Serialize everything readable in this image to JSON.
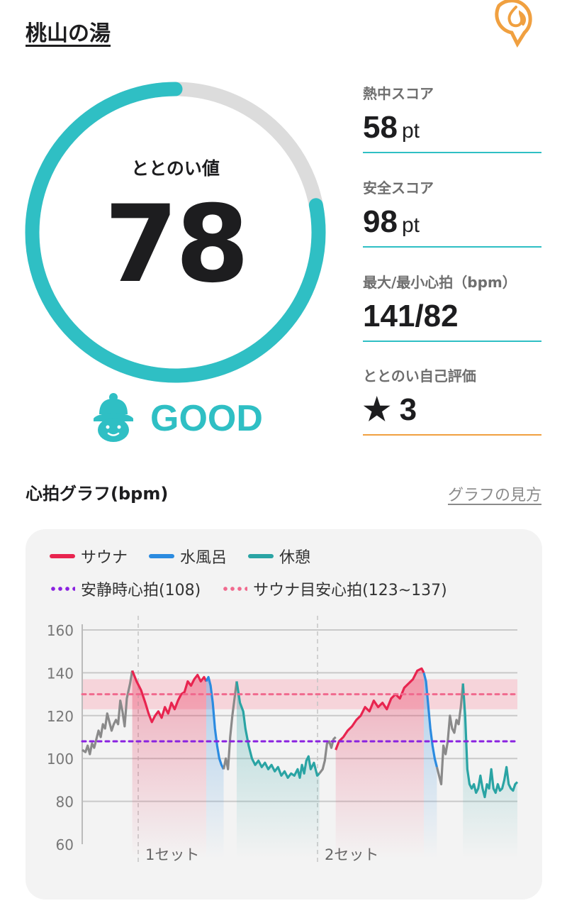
{
  "facility": {
    "name": "桃山の湯"
  },
  "icons": {
    "fire": "fire-chat-icon",
    "rating": "sauna-hat-face-icon"
  },
  "colors": {
    "accent": "#2fbfc4",
    "sauna": "#e8244f",
    "cold_bath": "#2b8be0",
    "rest": "#2aa4a4",
    "resting_hr": "#8a22e0",
    "target_hr": "#f06a8e",
    "self_rating_line": "#f0a040",
    "transition": "#8a8a8a"
  },
  "totonoi": {
    "label": "ととのい値",
    "value": "78",
    "score": 78,
    "rating": "GOOD"
  },
  "metrics": [
    {
      "label": "熱中スコア",
      "value": "58",
      "unit": "pt"
    },
    {
      "label": "安全スコア",
      "value": "98",
      "unit": "pt"
    },
    {
      "label": "最大/最小心拍（bpm）",
      "value": "141/82",
      "unit": ""
    },
    {
      "label": "ととのい自己評価",
      "value": "★ 3",
      "unit": ""
    }
  ],
  "graph": {
    "title": "心拍グラフ(bpm)",
    "guide_link": "グラフの見方"
  },
  "chart_data": {
    "type": "line",
    "legend": [
      "サウナ",
      "水風呂",
      "休憩",
      "安静時心拍(108)",
      "サウナ目安心拍(123~137)"
    ],
    "y_ticks": [
      "160",
      "140",
      "120",
      "100",
      "80",
      "60"
    ],
    "ylim": [
      60,
      160
    ],
    "x_markers": [
      "1セット",
      "2セット"
    ],
    "resting_hr": 108,
    "target_band": [
      123,
      137
    ],
    "target_line": 130,
    "series": [
      {
        "phase": "transition",
        "points": [
          [
            0,
            104
          ],
          [
            3,
            103
          ],
          [
            5,
            106
          ],
          [
            7,
            102
          ],
          [
            9,
            107
          ],
          [
            11,
            105
          ],
          [
            13,
            109
          ],
          [
            15,
            113
          ],
          [
            17,
            110
          ],
          [
            19,
            116
          ],
          [
            21,
            114
          ],
          [
            23,
            121
          ],
          [
            25,
            117
          ],
          [
            27,
            113
          ],
          [
            29,
            116
          ],
          [
            31,
            118
          ],
          [
            33,
            116
          ],
          [
            35,
            127
          ],
          [
            37,
            122
          ],
          [
            39,
            115
          ],
          [
            41,
            128
          ],
          [
            44,
            135
          ],
          [
            46,
            141
          ]
        ]
      },
      {
        "phase": "sauna",
        "points": [
          [
            46,
            141
          ],
          [
            50,
            136
          ],
          [
            54,
            132
          ],
          [
            58,
            126
          ],
          [
            61,
            121
          ],
          [
            64,
            117
          ],
          [
            67,
            120
          ],
          [
            70,
            122
          ],
          [
            73,
            119
          ],
          [
            76,
            124
          ],
          [
            79,
            121
          ],
          [
            82,
            126
          ],
          [
            85,
            123
          ],
          [
            88,
            127
          ],
          [
            91,
            130
          ],
          [
            94,
            131
          ],
          [
            97,
            136
          ],
          [
            100,
            134
          ],
          [
            103,
            137
          ],
          [
            106,
            139
          ],
          [
            109,
            136
          ],
          [
            112,
            138
          ],
          [
            114,
            136
          ]
        ]
      },
      {
        "phase": "cold_bath",
        "points": [
          [
            114,
            136
          ],
          [
            116,
            138
          ],
          [
            118,
            134
          ],
          [
            120,
            126
          ],
          [
            122,
            114
          ],
          [
            124,
            106
          ],
          [
            126,
            100
          ],
          [
            128,
            97
          ],
          [
            130,
            95
          ]
        ]
      },
      {
        "phase": "transition",
        "points": [
          [
            130,
            95
          ],
          [
            132,
            100
          ],
          [
            134,
            95
          ],
          [
            136,
            110
          ],
          [
            138,
            120
          ],
          [
            140,
            128
          ],
          [
            142,
            136
          ]
        ]
      },
      {
        "phase": "rest",
        "points": [
          [
            142,
            136
          ],
          [
            145,
            126
          ],
          [
            148,
            122
          ],
          [
            150,
            114
          ],
          [
            153,
            106
          ],
          [
            156,
            100
          ],
          [
            159,
            97
          ],
          [
            162,
            99
          ],
          [
            165,
            96
          ],
          [
            168,
            98
          ],
          [
            171,
            95
          ],
          [
            174,
            97
          ],
          [
            177,
            94
          ],
          [
            180,
            96
          ],
          [
            183,
            92
          ],
          [
            186,
            94
          ],
          [
            189,
            91
          ],
          [
            192,
            93
          ],
          [
            195,
            92
          ],
          [
            198,
            95
          ],
          [
            200,
            91
          ],
          [
            202,
            97
          ],
          [
            204,
            93
          ],
          [
            206,
            99
          ],
          [
            208,
            101
          ],
          [
            210,
            95
          ],
          [
            213,
            98
          ],
          [
            216,
            92
          ],
          [
            218,
            93
          ]
        ]
      },
      {
        "phase": "transition",
        "points": [
          [
            218,
            93
          ],
          [
            221,
            95
          ],
          [
            223,
            99
          ],
          [
            225,
            107
          ],
          [
            227,
            108
          ],
          [
            229,
            105
          ],
          [
            231,
            109
          ],
          [
            233,
            110
          ]
        ]
      },
      {
        "phase": "sauna",
        "points": [
          [
            233,
            104
          ],
          [
            236,
            108
          ],
          [
            240,
            110
          ],
          [
            244,
            113
          ],
          [
            248,
            115
          ],
          [
            252,
            118
          ],
          [
            256,
            120
          ],
          [
            260,
            124
          ],
          [
            264,
            122
          ],
          [
            268,
            127
          ],
          [
            272,
            124
          ],
          [
            276,
            126
          ],
          [
            280,
            123
          ],
          [
            284,
            128
          ],
          [
            288,
            130
          ],
          [
            292,
            128
          ],
          [
            296,
            133
          ],
          [
            300,
            135
          ],
          [
            304,
            137
          ],
          [
            308,
            141
          ],
          [
            312,
            142
          ],
          [
            314,
            140
          ]
        ]
      },
      {
        "phase": "cold_bath",
        "points": [
          [
            314,
            140
          ],
          [
            316,
            136
          ],
          [
            318,
            125
          ],
          [
            320,
            114
          ],
          [
            322,
            106
          ],
          [
            324,
            100
          ],
          [
            326,
            96
          ]
        ]
      },
      {
        "phase": "transition",
        "points": [
          [
            326,
            96
          ],
          [
            328,
            92
          ],
          [
            330,
            88
          ],
          [
            332,
            106
          ],
          [
            334,
            102
          ],
          [
            336,
            108
          ],
          [
            338,
            120
          ],
          [
            340,
            114
          ],
          [
            342,
            112
          ],
          [
            344,
            118
          ],
          [
            346,
            116
          ],
          [
            348,
            124
          ],
          [
            350,
            135
          ]
        ]
      },
      {
        "phase": "rest",
        "points": [
          [
            350,
            135
          ],
          [
            352,
            120
          ],
          [
            354,
            95
          ],
          [
            356,
            88
          ],
          [
            358,
            86
          ],
          [
            360,
            88
          ],
          [
            362,
            84
          ],
          [
            364,
            86
          ],
          [
            366,
            92
          ],
          [
            368,
            86
          ],
          [
            370,
            82
          ],
          [
            372,
            88
          ],
          [
            374,
            86
          ],
          [
            376,
            95
          ],
          [
            378,
            86
          ],
          [
            380,
            84
          ],
          [
            382,
            88
          ],
          [
            384,
            85
          ],
          [
            386,
            86
          ],
          [
            388,
            90
          ],
          [
            390,
            96
          ],
          [
            392,
            88
          ],
          [
            394,
            86
          ],
          [
            396,
            85
          ],
          [
            398,
            88
          ],
          [
            400,
            89
          ]
        ]
      }
    ]
  }
}
